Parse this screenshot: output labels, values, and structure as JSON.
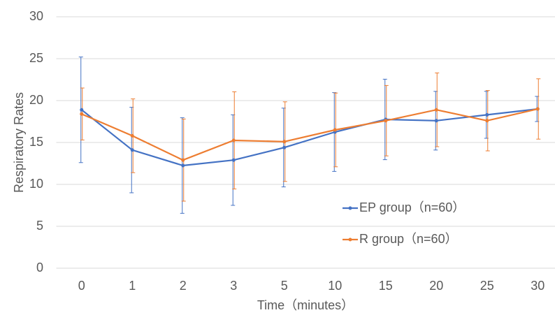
{
  "chart_data": {
    "type": "line",
    "x_label": "Time（minutes）",
    "y_label": "Respiratory Rates",
    "categories": [
      "0",
      "1",
      "2",
      "3",
      "5",
      "10",
      "15",
      "20",
      "25",
      "30"
    ],
    "series": [
      {
        "name": "EP group（n=60）",
        "color": "#4472c4",
        "values": [
          18.9,
          14.1,
          12.25,
          12.9,
          14.4,
          16.25,
          17.75,
          17.6,
          18.3,
          19.0
        ],
        "errors": [
          6.3,
          5.1,
          5.7,
          5.4,
          4.7,
          4.7,
          4.8,
          3.5,
          2.8,
          1.5
        ]
      },
      {
        "name": "R group（n=60）",
        "color": "#ed7d31",
        "values": [
          18.4,
          15.8,
          12.9,
          15.25,
          15.1,
          16.5,
          17.6,
          18.9,
          17.6,
          19.0
        ],
        "errors": [
          3.1,
          4.4,
          4.9,
          5.8,
          4.75,
          4.4,
          4.2,
          4.4,
          3.6,
          3.6
        ]
      }
    ],
    "ylim": [
      0,
      30
    ],
    "yticks": [
      0,
      5,
      10,
      15,
      20,
      25,
      30
    ],
    "grid": true,
    "legend_position": "right"
  }
}
